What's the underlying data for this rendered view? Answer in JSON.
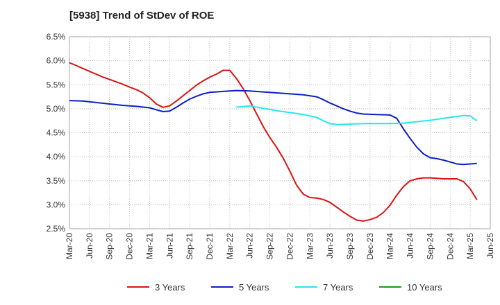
{
  "chart_data": {
    "type": "line",
    "title": "[5938]  Trend of StDev of ROE",
    "xlabel": "",
    "ylabel": "",
    "y_unit": "%",
    "ylim": [
      2.5,
      6.5
    ],
    "y_ticks": [
      "6.5%",
      "6.0%",
      "5.5%",
      "5.0%",
      "4.5%",
      "4.0%",
      "3.5%",
      "3.0%",
      "2.5%"
    ],
    "y_tick_values": [
      6.5,
      6.0,
      5.5,
      5.0,
      4.5,
      4.0,
      3.5,
      3.0,
      2.5
    ],
    "x_ticks": [
      "Mar-20",
      "Jun-20",
      "Sep-20",
      "Dec-20",
      "Mar-21",
      "Jun-21",
      "Sep-21",
      "Dec-21",
      "Mar-22",
      "Jun-22",
      "Sep-22",
      "Dec-22",
      "Mar-23",
      "Jun-23",
      "Sep-23",
      "Dec-23",
      "Mar-24",
      "Jun-24",
      "Sep-24",
      "Dec-24",
      "Mar-25",
      "Jun-25"
    ],
    "grid": true,
    "legend_position": "bottom",
    "series": [
      {
        "name": "3 Years",
        "color": "#dd1111",
        "points": [
          [
            "Mar-20",
            5.96
          ],
          [
            "Apr-20",
            5.9
          ],
          [
            "May-20",
            5.84
          ],
          [
            "Jun-20",
            5.78
          ],
          [
            "Jul-20",
            5.72
          ],
          [
            "Aug-20",
            5.66
          ],
          [
            "Sep-20",
            5.61
          ],
          [
            "Oct-20",
            5.56
          ],
          [
            "Nov-20",
            5.51
          ],
          [
            "Dec-20",
            5.45
          ],
          [
            "Jan-21",
            5.4
          ],
          [
            "Feb-21",
            5.33
          ],
          [
            "Mar-21",
            5.23
          ],
          [
            "Apr-21",
            5.1
          ],
          [
            "May-21",
            5.03
          ],
          [
            "Jun-21",
            5.06
          ],
          [
            "Jul-21",
            5.16
          ],
          [
            "Aug-21",
            5.27
          ],
          [
            "Sep-21",
            5.38
          ],
          [
            "Oct-21",
            5.49
          ],
          [
            "Nov-21",
            5.58
          ],
          [
            "Dec-21",
            5.66
          ],
          [
            "Jan-22",
            5.72
          ],
          [
            "Feb-22",
            5.8
          ],
          [
            "Mar-22",
            5.8
          ],
          [
            "Apr-22",
            5.63
          ],
          [
            "May-22",
            5.42
          ],
          [
            "Jun-22",
            5.17
          ],
          [
            "Jul-22",
            4.9
          ],
          [
            "Aug-22",
            4.63
          ],
          [
            "Sep-22",
            4.4
          ],
          [
            "Oct-22",
            4.2
          ],
          [
            "Nov-22",
            3.97
          ],
          [
            "Dec-22",
            3.7
          ],
          [
            "Jan-23",
            3.41
          ],
          [
            "Feb-23",
            3.22
          ],
          [
            "Mar-23",
            3.15
          ],
          [
            "Apr-23",
            3.14
          ],
          [
            "May-23",
            3.11
          ],
          [
            "Jun-23",
            3.05
          ],
          [
            "Jul-23",
            2.95
          ],
          [
            "Aug-23",
            2.85
          ],
          [
            "Sep-23",
            2.76
          ],
          [
            "Oct-23",
            2.68
          ],
          [
            "Nov-23",
            2.66
          ],
          [
            "Dec-23",
            2.69
          ],
          [
            "Jan-24",
            2.74
          ],
          [
            "Feb-24",
            2.84
          ],
          [
            "Mar-24",
            2.99
          ],
          [
            "Apr-24",
            3.2
          ],
          [
            "May-24",
            3.38
          ],
          [
            "Jun-24",
            3.5
          ],
          [
            "Jul-24",
            3.54
          ],
          [
            "Aug-24",
            3.56
          ],
          [
            "Sep-24",
            3.56
          ],
          [
            "Oct-24",
            3.55
          ],
          [
            "Nov-24",
            3.54
          ],
          [
            "Dec-24",
            3.54
          ],
          [
            "Jan-25",
            3.54
          ],
          [
            "Feb-25",
            3.48
          ],
          [
            "Mar-25",
            3.33
          ],
          [
            "Apr-25",
            3.1
          ]
        ]
      },
      {
        "name": "5 Years",
        "color": "#0a1fc8",
        "points": [
          [
            "Mar-20",
            5.17
          ],
          [
            "May-20",
            5.16
          ],
          [
            "Jul-20",
            5.13
          ],
          [
            "Sep-20",
            5.1
          ],
          [
            "Nov-20",
            5.07
          ],
          [
            "Jan-21",
            5.05
          ],
          [
            "Mar-21",
            5.02
          ],
          [
            "Apr-21",
            4.98
          ],
          [
            "May-21",
            4.94
          ],
          [
            "Jun-21",
            4.95
          ],
          [
            "Jul-21",
            5.03
          ],
          [
            "Aug-21",
            5.12
          ],
          [
            "Sep-21",
            5.2
          ],
          [
            "Oct-21",
            5.26
          ],
          [
            "Nov-21",
            5.31
          ],
          [
            "Dec-21",
            5.34
          ],
          [
            "Feb-22",
            5.36
          ],
          [
            "Apr-22",
            5.38
          ],
          [
            "Jun-22",
            5.37
          ],
          [
            "Aug-22",
            5.35
          ],
          [
            "Oct-22",
            5.33
          ],
          [
            "Dec-22",
            5.31
          ],
          [
            "Feb-23",
            5.29
          ],
          [
            "Apr-23",
            5.25
          ],
          [
            "May-23",
            5.19
          ],
          [
            "Jun-23",
            5.12
          ],
          [
            "Jul-23",
            5.06
          ],
          [
            "Aug-23",
            5.0
          ],
          [
            "Sep-23",
            4.95
          ],
          [
            "Oct-23",
            4.91
          ],
          [
            "Nov-23",
            4.89
          ],
          [
            "Jan-24",
            4.88
          ],
          [
            "Mar-24",
            4.87
          ],
          [
            "Apr-24",
            4.8
          ],
          [
            "May-24",
            4.58
          ],
          [
            "Jun-24",
            4.38
          ],
          [
            "Jul-24",
            4.2
          ],
          [
            "Aug-24",
            4.06
          ],
          [
            "Sep-24",
            3.98
          ],
          [
            "Oct-24",
            3.96
          ],
          [
            "Nov-24",
            3.93
          ],
          [
            "Dec-24",
            3.89
          ],
          [
            "Jan-25",
            3.85
          ],
          [
            "Feb-25",
            3.84
          ],
          [
            "Mar-25",
            3.85
          ],
          [
            "Apr-25",
            3.86
          ]
        ]
      },
      {
        "name": "7 Years",
        "color": "#22e8ee",
        "points": [
          [
            "Apr-22",
            5.03
          ],
          [
            "Jun-22",
            5.06
          ],
          [
            "Aug-22",
            5.01
          ],
          [
            "Oct-22",
            4.96
          ],
          [
            "Dec-22",
            4.92
          ],
          [
            "Feb-23",
            4.88
          ],
          [
            "Apr-23",
            4.82
          ],
          [
            "May-23",
            4.75
          ],
          [
            "Jun-23",
            4.69
          ],
          [
            "Jul-23",
            4.67
          ],
          [
            "Sep-23",
            4.68
          ],
          [
            "Nov-23",
            4.69
          ],
          [
            "Jan-24",
            4.69
          ],
          [
            "Mar-24",
            4.69
          ],
          [
            "May-24",
            4.7
          ],
          [
            "Jul-24",
            4.73
          ],
          [
            "Sep-24",
            4.76
          ],
          [
            "Nov-24",
            4.8
          ],
          [
            "Jan-25",
            4.84
          ],
          [
            "Feb-25",
            4.86
          ],
          [
            "Mar-25",
            4.85
          ],
          [
            "Apr-25",
            4.75
          ]
        ]
      },
      {
        "name": "10 Years",
        "color": "#1a9a1a",
        "points": []
      }
    ]
  }
}
